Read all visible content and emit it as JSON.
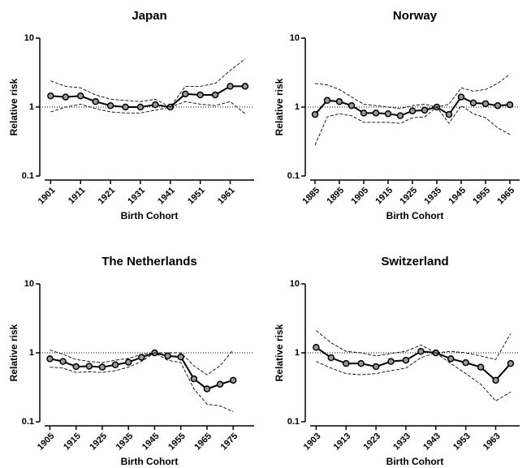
{
  "chart_data": [
    {
      "type": "line",
      "title": "Japan",
      "x_label": "Birth Cohort",
      "y_label": "Relative risk",
      "log_y": true,
      "hline": 1,
      "x": [
        1901,
        1906,
        1911,
        1916,
        1921,
        1926,
        1931,
        1936,
        1941,
        1946,
        1951,
        1956,
        1961,
        1966
      ],
      "xlim": [
        1899,
        1969
      ],
      "xticks": [
        1901,
        1911,
        1921,
        1931,
        1941,
        1951,
        1961
      ],
      "ylim": [
        0.1,
        10
      ],
      "yticks": [
        0.1,
        1,
        10
      ],
      "series": [
        {
          "color": "#000000",
          "style": "solid",
          "markers": true,
          "values": [
            1.45,
            1.4,
            1.45,
            1.2,
            1.05,
            1.0,
            1.0,
            1.08,
            1.0,
            1.55,
            1.5,
            1.5,
            2.0,
            2.0
          ]
        },
        {
          "color": "#000000",
          "style": "dashed",
          "markers": false,
          "values": [
            2.4,
            2.0,
            1.9,
            1.5,
            1.3,
            1.25,
            1.2,
            1.3,
            1.0,
            2.0,
            2.0,
            2.2,
            3.4,
            5.0
          ]
        },
        {
          "color": "#000000",
          "style": "dashed",
          "markers": false,
          "values": [
            0.85,
            1.0,
            1.1,
            0.95,
            0.85,
            0.82,
            0.82,
            0.9,
            1.0,
            1.2,
            1.1,
            1.05,
            1.2,
            0.8
          ]
        }
      ]
    },
    {
      "type": "line",
      "title": "Norway",
      "x_label": "Birth Cohort",
      "y_label": "Relative risk",
      "log_y": true,
      "hline": 1,
      "x": [
        1885,
        1890,
        1895,
        1900,
        1905,
        1910,
        1915,
        1920,
        1925,
        1930,
        1935,
        1940,
        1945,
        1950,
        1955,
        1960,
        1965
      ],
      "xlim": [
        1883,
        1969
      ],
      "xticks": [
        1885,
        1895,
        1905,
        1915,
        1925,
        1935,
        1945,
        1955,
        1965
      ],
      "ylim": [
        0.1,
        10
      ],
      "yticks": [
        0.1,
        1,
        10
      ],
      "series": [
        {
          "color": "#000000",
          "style": "solid",
          "markers": true,
          "values": [
            0.78,
            1.25,
            1.2,
            1.05,
            0.82,
            0.82,
            0.8,
            0.75,
            0.88,
            0.9,
            1.0,
            0.78,
            1.4,
            1.15,
            1.12,
            1.05,
            1.08
          ]
        },
        {
          "color": "#000000",
          "style": "dashed",
          "markers": false,
          "values": [
            2.2,
            2.1,
            1.8,
            1.4,
            1.1,
            1.05,
            1.0,
            0.95,
            1.05,
            1.1,
            1.0,
            1.1,
            1.9,
            1.7,
            1.8,
            2.2,
            3.0
          ]
        },
        {
          "color": "#000000",
          "style": "dashed",
          "markers": false,
          "values": [
            0.28,
            0.72,
            0.8,
            0.75,
            0.6,
            0.6,
            0.6,
            0.58,
            0.7,
            0.72,
            1.0,
            0.58,
            1.05,
            0.8,
            0.7,
            0.5,
            0.4
          ]
        }
      ]
    },
    {
      "type": "line",
      "title": "The Netherlands",
      "x_label": "Birth Cohort",
      "y_label": "Relative risk",
      "log_y": true,
      "hline": 1,
      "x": [
        1905,
        1910,
        1915,
        1920,
        1925,
        1930,
        1935,
        1940,
        1945,
        1950,
        1955,
        1960,
        1965,
        1970,
        1975
      ],
      "xlim": [
        1903,
        1983
      ],
      "xticks": [
        1905,
        1915,
        1925,
        1935,
        1945,
        1955,
        1965,
        1975
      ],
      "ylim": [
        0.1,
        10
      ],
      "yticks": [
        0.1,
        1,
        10
      ],
      "series": [
        {
          "color": "#000000",
          "style": "solid",
          "markers": true,
          "values": [
            0.82,
            0.75,
            0.63,
            0.64,
            0.62,
            0.67,
            0.73,
            0.86,
            1.0,
            0.9,
            0.87,
            0.42,
            0.3,
            0.35,
            0.4
          ]
        },
        {
          "color": "#000000",
          "style": "dashed",
          "markers": false,
          "values": [
            1.1,
            0.95,
            0.8,
            0.75,
            0.72,
            0.78,
            0.83,
            0.95,
            1.0,
            1.0,
            1.0,
            0.65,
            0.48,
            0.65,
            1.1
          ]
        },
        {
          "color": "#000000",
          "style": "dashed",
          "markers": false,
          "values": [
            0.62,
            0.6,
            0.52,
            0.53,
            0.52,
            0.55,
            0.62,
            0.75,
            1.0,
            0.78,
            0.72,
            0.3,
            0.18,
            0.17,
            0.14
          ]
        }
      ]
    },
    {
      "type": "line",
      "title": "Switzerland",
      "x_label": "Birth Cohort",
      "y_label": "Relative risk",
      "log_y": true,
      "hline": 1,
      "x": [
        1903,
        1908,
        1913,
        1918,
        1923,
        1928,
        1933,
        1938,
        1943,
        1948,
        1953,
        1958,
        1963,
        1968
      ],
      "xlim": [
        1901,
        1971
      ],
      "xticks": [
        1903,
        1913,
        1923,
        1933,
        1943,
        1953,
        1963
      ],
      "ylim": [
        0.1,
        10
      ],
      "yticks": [
        0.1,
        1,
        10
      ],
      "series": [
        {
          "color": "#000000",
          "style": "solid",
          "markers": true,
          "values": [
            1.2,
            0.85,
            0.7,
            0.7,
            0.63,
            0.75,
            0.78,
            1.05,
            1.0,
            0.82,
            0.72,
            0.62,
            0.4,
            0.7
          ]
        },
        {
          "color": "#000000",
          "style": "dashed",
          "markers": false,
          "values": [
            2.1,
            1.4,
            1.05,
            1.0,
            0.9,
            0.98,
            1.05,
            1.3,
            1.0,
            1.05,
            1.0,
            0.9,
            0.8,
            1.9
          ]
        },
        {
          "color": "#000000",
          "style": "dashed",
          "markers": false,
          "values": [
            0.75,
            0.6,
            0.5,
            0.48,
            0.5,
            0.55,
            0.6,
            0.85,
            1.0,
            0.7,
            0.5,
            0.35,
            0.2,
            0.27
          ]
        }
      ]
    }
  ]
}
